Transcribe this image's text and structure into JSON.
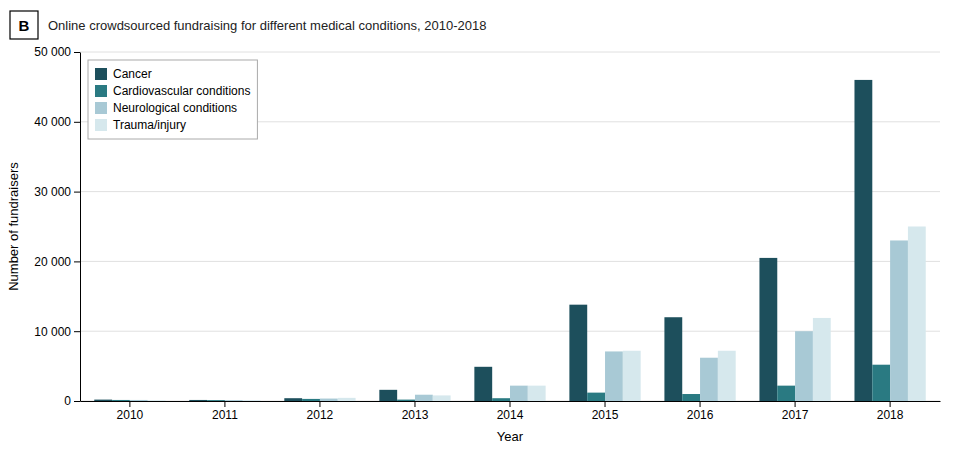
{
  "chart_data": {
    "type": "bar",
    "title": "Online crowdsourced fundraising for different medical conditions, 2010-2018",
    "annotations": [
      "B"
    ],
    "xlabel": "Year",
    "ylabel": "Number of fundraisers",
    "categories": [
      "2010",
      "2011",
      "2012",
      "2013",
      "2014",
      "2015",
      "2016",
      "2017",
      "2018"
    ],
    "series": [
      {
        "name": "Cancer",
        "color": "#1d4f5c",
        "values": [
          200,
          150,
          400,
          1600,
          4900,
          13800,
          12000,
          20500,
          46000
        ]
      },
      {
        "name": "Cardiovascular conditions",
        "color": "#2a7a82",
        "values": [
          150,
          130,
          300,
          200,
          400,
          1200,
          1000,
          2200,
          5200
        ]
      },
      {
        "name": "Neurological conditions",
        "color": "#a8c9d5",
        "values": [
          150,
          130,
          350,
          900,
          2200,
          7100,
          6200,
          10000,
          23000
        ]
      },
      {
        "name": "Trauma/injury",
        "color": "#d6e8ed",
        "values": [
          100,
          120,
          450,
          800,
          2200,
          7200,
          7200,
          11900,
          25000
        ]
      }
    ],
    "ylim": [
      0,
      50000
    ],
    "yticks": [
      0,
      {
        "value": 10000,
        "label": "10 000"
      },
      {
        "value": 20000,
        "label": "20 000"
      },
      {
        "value": 30000,
        "label": "30 000"
      },
      {
        "value": 40000,
        "label": "40 000"
      },
      {
        "value": 50000,
        "label": "50 000"
      }
    ],
    "grid": true,
    "legend": "upper left"
  }
}
